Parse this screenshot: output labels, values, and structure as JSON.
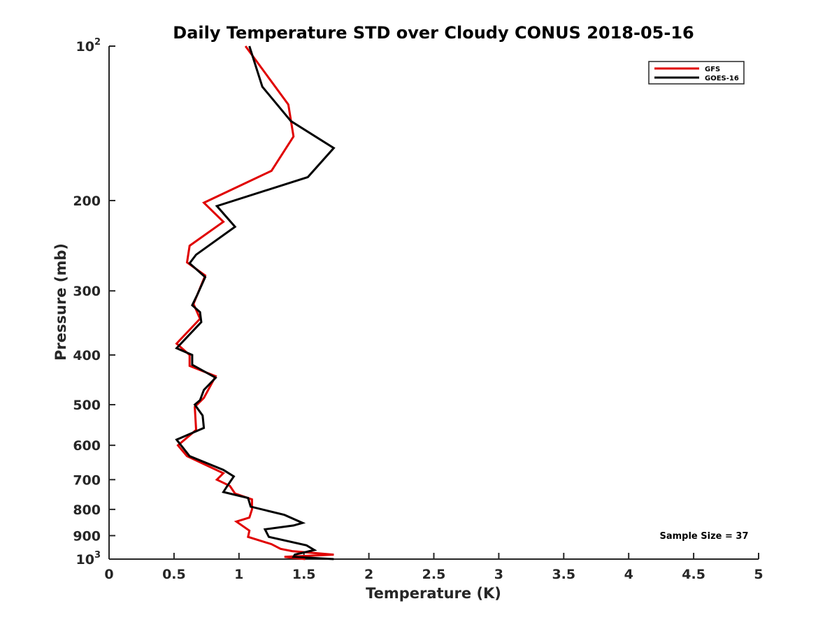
{
  "chart_data": {
    "type": "line",
    "title": "Daily Temperature STD over Cloudy CONUS 2018-05-16",
    "xlabel": "Temperature (K)",
    "ylabel": "Pressure (mb)",
    "xlim": [
      0,
      5
    ],
    "ylim": [
      100,
      1000
    ],
    "y_scale": "log",
    "y_reversed": true,
    "grid": false,
    "legend_position": "top-right",
    "annotation": "Sample Size = 37",
    "x_ticks": [
      {
        "value": 0,
        "label": "0"
      },
      {
        "value": 0.5,
        "label": "0.5"
      },
      {
        "value": 1,
        "label": "1"
      },
      {
        "value": 1.5,
        "label": "1.5"
      },
      {
        "value": 2,
        "label": "2"
      },
      {
        "value": 2.5,
        "label": "2.5"
      },
      {
        "value": 3,
        "label": "3"
      },
      {
        "value": 3.5,
        "label": "3.5"
      },
      {
        "value": 4,
        "label": "4"
      },
      {
        "value": 4.5,
        "label": "4.5"
      },
      {
        "value": 5,
        "label": "5"
      }
    ],
    "y_ticks": [
      {
        "value": 100,
        "label": "10",
        "sup": "2"
      },
      {
        "value": 200,
        "label": "200"
      },
      {
        "value": 300,
        "label": "300"
      },
      {
        "value": 400,
        "label": "400"
      },
      {
        "value": 500,
        "label": "500"
      },
      {
        "value": 600,
        "label": "600"
      },
      {
        "value": 700,
        "label": "700"
      },
      {
        "value": 800,
        "label": "800"
      },
      {
        "value": 900,
        "label": "900"
      },
      {
        "value": 1000,
        "label": "10",
        "sup": "3"
      }
    ],
    "series": [
      {
        "name": "GFS",
        "color": "#e00000",
        "points": [
          [
            1.05,
            100
          ],
          [
            1.38,
            130
          ],
          [
            1.42,
            150
          ],
          [
            1.25,
            175
          ],
          [
            0.73,
            202
          ],
          [
            0.88,
            220
          ],
          [
            0.62,
            245
          ],
          [
            0.6,
            264
          ],
          [
            0.74,
            280
          ],
          [
            0.65,
            318
          ],
          [
            0.7,
            340
          ],
          [
            0.52,
            380
          ],
          [
            0.62,
            400
          ],
          [
            0.62,
            420
          ],
          [
            0.82,
            440
          ],
          [
            0.73,
            485
          ],
          [
            0.66,
            505
          ],
          [
            0.67,
            560
          ],
          [
            0.53,
            600
          ],
          [
            0.6,
            630
          ],
          [
            0.88,
            680
          ],
          [
            0.83,
            700
          ],
          [
            0.93,
            720
          ],
          [
            0.97,
            745
          ],
          [
            1.1,
            765
          ],
          [
            1.1,
            780
          ],
          [
            1.1,
            800
          ],
          [
            1.08,
            830
          ],
          [
            0.98,
            845
          ],
          [
            1.08,
            880
          ],
          [
            1.07,
            905
          ],
          [
            1.25,
            935
          ],
          [
            1.32,
            955
          ],
          [
            1.41,
            965
          ],
          [
            1.73,
            980
          ],
          [
            1.35,
            990
          ],
          [
            1.51,
            1000
          ]
        ]
      },
      {
        "name": "GOES-16",
        "color": "#000000",
        "points": [
          [
            1.08,
            100
          ],
          [
            1.18,
            120
          ],
          [
            1.4,
            140
          ],
          [
            1.73,
            158
          ],
          [
            1.53,
            180
          ],
          [
            0.83,
            205
          ],
          [
            0.97,
            225
          ],
          [
            0.67,
            255
          ],
          [
            0.62,
            265
          ],
          [
            0.74,
            282
          ],
          [
            0.68,
            305
          ],
          [
            0.64,
            320
          ],
          [
            0.7,
            330
          ],
          [
            0.71,
            345
          ],
          [
            0.52,
            388
          ],
          [
            0.64,
            400
          ],
          [
            0.64,
            418
          ],
          [
            0.82,
            443
          ],
          [
            0.73,
            468
          ],
          [
            0.7,
            490
          ],
          [
            0.66,
            500
          ],
          [
            0.72,
            525
          ],
          [
            0.73,
            555
          ],
          [
            0.52,
            585
          ],
          [
            0.62,
            630
          ],
          [
            0.88,
            670
          ],
          [
            0.96,
            690
          ],
          [
            0.91,
            720
          ],
          [
            0.88,
            740
          ],
          [
            1.07,
            760
          ],
          [
            1.09,
            790
          ],
          [
            1.35,
            820
          ],
          [
            1.49,
            850
          ],
          [
            1.42,
            860
          ],
          [
            1.2,
            875
          ],
          [
            1.23,
            905
          ],
          [
            1.52,
            940
          ],
          [
            1.58,
            960
          ],
          [
            1.43,
            980
          ],
          [
            1.42,
            990
          ],
          [
            1.73,
            1000
          ]
        ]
      }
    ]
  }
}
